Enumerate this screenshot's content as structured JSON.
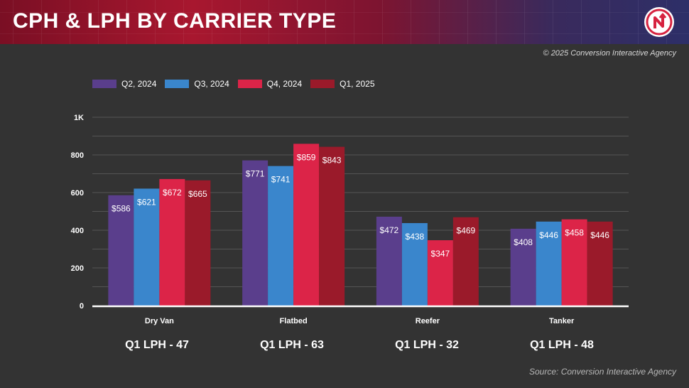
{
  "header": {
    "title": "CPH & LPH BY CARRIER TYPE"
  },
  "copyright": "© 2025 Conversion Interactive Agency",
  "source": "Source: Conversion Interactive Agency",
  "chart_data": {
    "type": "bar",
    "title": "",
    "xlabel": "",
    "ylabel": "",
    "categories": [
      "Dry Van",
      "Flatbed",
      "Reefer",
      "Tanker"
    ],
    "ylim": [
      0,
      1000
    ],
    "yticks": [
      0,
      200,
      400,
      600,
      800,
      1000
    ],
    "ytick_labels": [
      "0",
      "200",
      "400",
      "600",
      "800",
      "1K"
    ],
    "grid": true,
    "legend_position": "top-left",
    "series": [
      {
        "name": "Q2, 2024",
        "color": "#5a3e8c",
        "values": [
          586,
          771,
          472,
          408
        ],
        "labels": [
          "$586",
          "$771",
          "$472",
          "$408"
        ]
      },
      {
        "name": "Q3, 2024",
        "color": "#3a86cc",
        "values": [
          621,
          741,
          438,
          446
        ],
        "labels": [
          "$621",
          "$741",
          "$438",
          "$446"
        ]
      },
      {
        "name": "Q4, 2024",
        "color": "#dc2448",
        "values": [
          672,
          859,
          347,
          458
        ],
        "labels": [
          "$672",
          "$859",
          "$347",
          "$458"
        ]
      },
      {
        "name": "Q1, 2025",
        "color": "#9a1a2a",
        "values": [
          665,
          843,
          469,
          446
        ],
        "labels": [
          "$665",
          "$843",
          "$469",
          "$446"
        ]
      }
    ],
    "annotations": [
      "Q1 LPH - 47",
      "Q1 LPH - 63",
      "Q1 LPH - 32",
      "Q1 LPH - 48"
    ]
  }
}
